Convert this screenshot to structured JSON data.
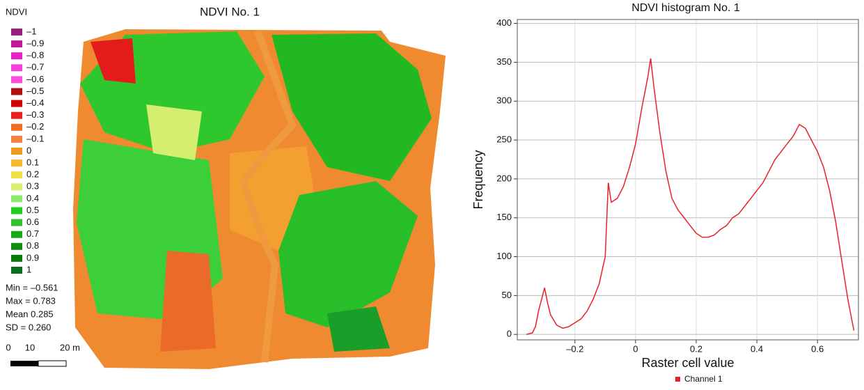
{
  "map": {
    "title": "NDVI No. 1",
    "legend": {
      "title": "NDVI",
      "items": [
        {
          "label": "–1",
          "color": "#991f7f"
        },
        {
          "label": "–0.9",
          "color": "#c0189a"
        },
        {
          "label": "–0.8",
          "color": "#e81fc4"
        },
        {
          "label": "–0.7",
          "color": "#f53fd9"
        },
        {
          "label": "–0.6",
          "color": "#ff4ddb"
        },
        {
          "label": "–0.5",
          "color": "#b30f0f"
        },
        {
          "label": "–0.4",
          "color": "#d10000"
        },
        {
          "label": "–0.3",
          "color": "#e82020"
        },
        {
          "label": "–0.2",
          "color": "#f07020"
        },
        {
          "label": "–0.1",
          "color": "#f28040"
        },
        {
          "label": "0",
          "color": "#f09a20"
        },
        {
          "label": "0.1",
          "color": "#f5b830"
        },
        {
          "label": "0.2",
          "color": "#f0e040"
        },
        {
          "label": "0.3",
          "color": "#d8f070"
        },
        {
          "label": "0.4",
          "color": "#90e870"
        },
        {
          "label": "0.5",
          "color": "#20d020"
        },
        {
          "label": "0.6",
          "color": "#30c030"
        },
        {
          "label": "0.7",
          "color": "#18a818"
        },
        {
          "label": "0.8",
          "color": "#108c10"
        },
        {
          "label": "0.9",
          "color": "#0a7a0a"
        },
        {
          "label": "1",
          "color": "#0a6e1e"
        }
      ]
    },
    "stats": [
      "Min = –0.561",
      "Max = 0.783",
      "Mean  0.285",
      "SD = 0.260"
    ],
    "scale": {
      "labels": [
        "0",
        "10",
        "20 m"
      ]
    }
  },
  "chart_data": {
    "type": "line",
    "title": "NDVI histogram No. 1",
    "x_label": "Raster cell value",
    "y_label": "Frequency",
    "x": [
      -0.36,
      -0.34,
      -0.33,
      -0.32,
      -0.3,
      -0.29,
      -0.28,
      -0.26,
      -0.24,
      -0.22,
      -0.2,
      -0.18,
      -0.16,
      -0.14,
      -0.12,
      -0.1,
      -0.09,
      -0.08,
      -0.06,
      -0.04,
      -0.02,
      0.0,
      0.02,
      0.04,
      0.05,
      0.06,
      0.08,
      0.1,
      0.12,
      0.14,
      0.16,
      0.18,
      0.2,
      0.22,
      0.24,
      0.26,
      0.28,
      0.3,
      0.32,
      0.34,
      0.36,
      0.38,
      0.4,
      0.42,
      0.44,
      0.46,
      0.48,
      0.5,
      0.52,
      0.54,
      0.56,
      0.58,
      0.6,
      0.62,
      0.64,
      0.66,
      0.68,
      0.7,
      0.72
    ],
    "series": [
      {
        "name": "Channel 1",
        "color": "#e8202a",
        "values": [
          0,
          2,
          10,
          30,
          60,
          40,
          25,
          12,
          8,
          10,
          15,
          20,
          30,
          45,
          65,
          100,
          195,
          170,
          175,
          190,
          215,
          245,
          290,
          330,
          355,
          320,
          260,
          210,
          175,
          160,
          150,
          140,
          130,
          125,
          125,
          128,
          135,
          140,
          150,
          155,
          165,
          175,
          185,
          195,
          210,
          225,
          235,
          245,
          255,
          270,
          265,
          250,
          235,
          215,
          185,
          145,
          95,
          45,
          5
        ]
      }
    ],
    "xlim": [
      -0.39,
      0.735
    ],
    "ylim": [
      -7,
      405
    ],
    "xticks": [
      {
        "value": -0.2,
        "label": "–0.2"
      },
      0,
      0.2,
      0.4,
      0.6
    ],
    "yticks": [
      0,
      50,
      100,
      150,
      200,
      250,
      300,
      350,
      400
    ],
    "grid": true,
    "legend_position": "bottom"
  }
}
